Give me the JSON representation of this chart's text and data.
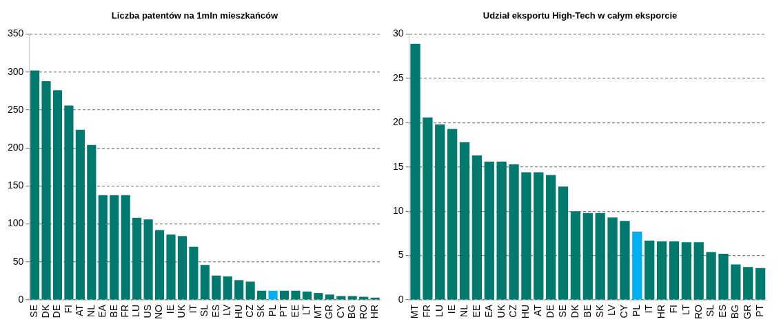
{
  "chart_data": [
    {
      "type": "bar",
      "title": "Liczba patentów na 1mln mieszkańców",
      "categories": [
        "SE",
        "DK",
        "DE",
        "FI",
        "AT",
        "NL",
        "EA",
        "BE",
        "FR",
        "LU",
        "US",
        "NO",
        "IE",
        "UK",
        "IT",
        "SL",
        "ES",
        "LV",
        "HU",
        "CZ",
        "SK",
        "PL",
        "PT",
        "EE",
        "LT",
        "MT",
        "GR",
        "CY",
        "BG",
        "RO",
        "HR"
      ],
      "values": [
        302,
        288,
        276,
        256,
        224,
        204,
        138,
        138,
        138,
        108,
        106,
        92,
        86,
        84,
        70,
        46,
        32,
        31,
        26,
        24,
        12,
        12,
        12,
        12,
        11,
        9,
        7,
        5,
        5,
        4,
        3
      ],
      "colors": [
        "#007a6e",
        "#007a6e",
        "#007a6e",
        "#007a6e",
        "#007a6e",
        "#007a6e",
        "#007a6e",
        "#007a6e",
        "#007a6e",
        "#007a6e",
        "#007a6e",
        "#007a6e",
        "#007a6e",
        "#007a6e",
        "#007a6e",
        "#007a6e",
        "#007a6e",
        "#007a6e",
        "#007a6e",
        "#007a6e",
        "#007a6e",
        "#00b0f0",
        "#007a6e",
        "#007a6e",
        "#007a6e",
        "#007a6e",
        "#007a6e",
        "#007a6e",
        "#007a6e",
        "#007a6e",
        "#007a6e"
      ],
      "ylim": [
        0,
        350
      ],
      "yticks": [
        0,
        50,
        100,
        150,
        200,
        250,
        300,
        350
      ],
      "grid": "y"
    },
    {
      "type": "bar",
      "title": "Udział eksportu High-Tech w całym eksporcie",
      "categories": [
        "MT",
        "FR",
        "LU",
        "IE",
        "NL",
        "EE",
        "EA",
        "UK",
        "CZ",
        "HU",
        "AT",
        "DE",
        "SE",
        "DK",
        "BE",
        "SK",
        "LV",
        "CY",
        "PL",
        "IT",
        "HR",
        "FI",
        "LT",
        "RO",
        "SL",
        "ES",
        "BG",
        "GR",
        "PT"
      ],
      "values": [
        28.9,
        20.6,
        19.8,
        19.3,
        17.8,
        16.3,
        15.6,
        15.6,
        15.3,
        14.4,
        14.4,
        14.1,
        12.8,
        10,
        9.8,
        9.8,
        9.3,
        8.9,
        7.7,
        6.7,
        6.6,
        6.6,
        6.5,
        6.5,
        5.4,
        5.2,
        4.0,
        3.7,
        3.6
      ],
      "colors": [
        "#007a6e",
        "#007a6e",
        "#007a6e",
        "#007a6e",
        "#007a6e",
        "#007a6e",
        "#007a6e",
        "#007a6e",
        "#007a6e",
        "#007a6e",
        "#007a6e",
        "#007a6e",
        "#007a6e",
        "#007a6e",
        "#007a6e",
        "#007a6e",
        "#007a6e",
        "#007a6e",
        "#00b0f0",
        "#007a6e",
        "#007a6e",
        "#007a6e",
        "#007a6e",
        "#007a6e",
        "#007a6e",
        "#007a6e",
        "#007a6e",
        "#007a6e",
        "#007a6e"
      ],
      "ylim": [
        0,
        30
      ],
      "yticks": [
        0,
        5,
        10,
        15,
        20,
        25,
        30
      ],
      "grid": "y"
    }
  ]
}
